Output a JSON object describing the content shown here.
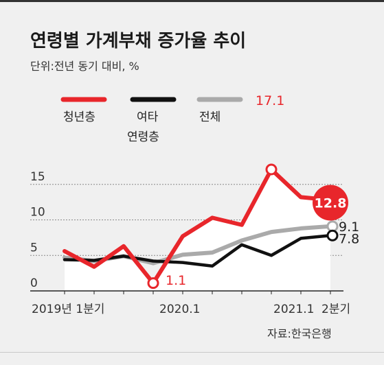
{
  "chart_data": {
    "type": "line",
    "title": "연령별 가계부채 증가율 추이",
    "subtitle": "단위:전년 동기 대비, %",
    "source": "자료:한국은행",
    "ylim": [
      0,
      17.5
    ],
    "yticks": [
      "15",
      "10",
      "5",
      "0"
    ],
    "ytick_values": [
      15,
      10,
      5,
      0
    ],
    "x_count": 10,
    "xtick_labels": [
      {
        "label": "2019년 1분기",
        "index": 0
      },
      {
        "label": "2020.1",
        "index": 4
      },
      {
        "label": "2021.1",
        "index": 8
      },
      {
        "label": "2분기",
        "index": 9
      }
    ],
    "grid": true,
    "legend": [
      {
        "label": "청년층",
        "color": "#e8262b"
      },
      {
        "label": "여타",
        "label2": "연령층",
        "color": "#111111"
      },
      {
        "label": "전체",
        "color": "#aaaaaa"
      }
    ],
    "series": [
      {
        "name": "청년층",
        "color": "#e8262b",
        "values": [
          5.6,
          3.4,
          6.3,
          1.1,
          7.7,
          10.3,
          9.3,
          17.1,
          13.2,
          12.8
        ]
      },
      {
        "name": "여타 연령층",
        "color": "#111111",
        "values": [
          4.4,
          4.3,
          4.9,
          4.2,
          4.0,
          3.5,
          6.5,
          5.0,
          7.4,
          7.8
        ]
      },
      {
        "name": "전체",
        "color": "#aaaaaa",
        "values": [
          4.7,
          4.2,
          4.9,
          3.9,
          5.1,
          5.4,
          7.1,
          8.3,
          8.8,
          9.1
        ]
      }
    ],
    "annotations": {
      "peak": "17.1",
      "low": "1.1",
      "youth_last": "12.8",
      "total_last": "9.1",
      "other_last": "7.8"
    }
  }
}
